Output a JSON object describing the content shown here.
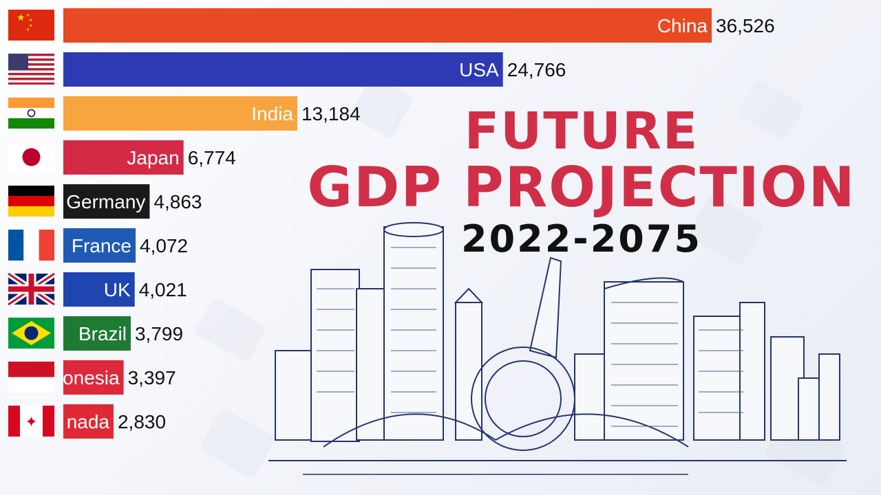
{
  "title": {
    "line1": "FUTURE",
    "line2": "GDP PROJECTION"
  },
  "subtitle": "2022-2075",
  "colors": {
    "title": "#d12f48",
    "subtitle": "#111111"
  },
  "chart_data": {
    "type": "bar",
    "orientation": "horizontal",
    "categories": [
      "China",
      "USA",
      "India",
      "Japan",
      "Germany",
      "France",
      "UK",
      "Brazil",
      "onesia",
      "nada"
    ],
    "values": [
      36526,
      24766,
      13184,
      6774,
      4863,
      4072,
      4021,
      3799,
      3397,
      2830
    ],
    "value_labels": [
      "36,526",
      "24,766",
      "13,184",
      "6,774",
      "4,863",
      "4,072",
      "4,021",
      "3,799",
      "3,397",
      "2,830"
    ],
    "bar_colors": [
      "#e84a23",
      "#2e3ab3",
      "#f8a43f",
      "#d32a46",
      "#1a1a1a",
      "#1f5bb4",
      "#1f45b0",
      "#1f7a34",
      "#dc2a3c",
      "#df2a36"
    ],
    "flags": [
      "china-flag",
      "usa-flag",
      "india-flag",
      "japan-flag",
      "germany-flag",
      "france-flag",
      "uk-flag",
      "brazil-flag",
      "indonesia-flag",
      "canada-flag"
    ]
  },
  "illustration": "city-skyline-sketch"
}
